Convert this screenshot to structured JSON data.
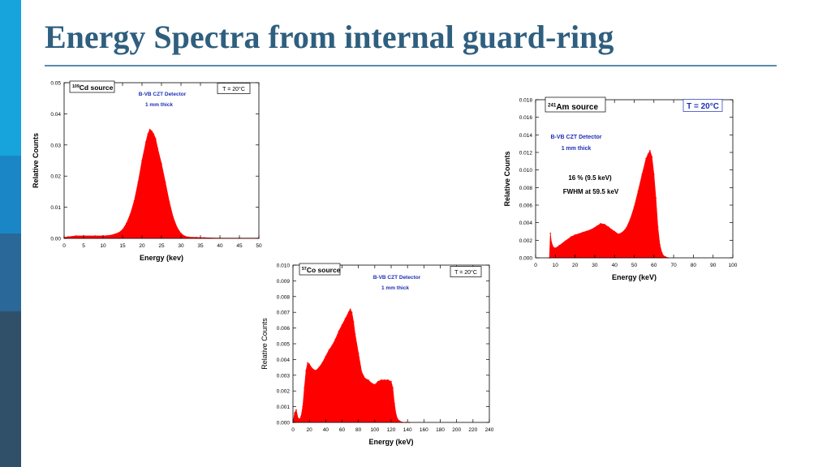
{
  "page": {
    "title": "Energy Spectra from internal guard-ring",
    "sidebar_colors": [
      "#17a3dc",
      "#1b86c6",
      "#2a6899",
      "#2f5068"
    ],
    "title_color": "#2f5f7f",
    "rule_color": "#5b8ba8"
  },
  "chart_data": [
    {
      "type": "area",
      "series_color": "#ff0000",
      "xlabel": "Energy (kev)",
      "ylabel": "Relative Counts",
      "xlim": [
        0,
        50
      ],
      "ylim": [
        0,
        0.05
      ],
      "xticks": [
        0,
        5,
        10,
        15,
        20,
        25,
        30,
        35,
        40,
        45,
        50
      ],
      "yticks": [
        0,
        0.01,
        0.02,
        0.03,
        0.04,
        0.05
      ],
      "ytick_labels": [
        "0.00",
        "0.01",
        "0.02",
        "0.03",
        "0.04",
        "0.05"
      ],
      "annotations": {
        "source_sup": "109",
        "source": "Cd source",
        "detector": "B-VB CZT Detector",
        "thickness": "1 mm thick",
        "temperature": "T = 20°C"
      },
      "x": [
        0,
        1,
        3,
        5,
        8,
        10,
        12,
        14,
        15,
        16,
        17,
        18,
        19,
        20,
        21,
        21.5,
        22,
        22.5,
        23,
        23.5,
        24,
        25,
        26,
        27,
        28,
        29,
        30,
        31,
        32,
        34,
        36,
        40,
        45,
        50
      ],
      "y": [
        0.0003,
        0.0005,
        0.0008,
        0.0008,
        0.0008,
        0.0008,
        0.001,
        0.0018,
        0.0028,
        0.0048,
        0.0078,
        0.012,
        0.018,
        0.025,
        0.031,
        0.0335,
        0.035,
        0.0345,
        0.0335,
        0.032,
        0.029,
        0.024,
        0.018,
        0.0118,
        0.0068,
        0.0035,
        0.0016,
        0.0007,
        0.0004,
        0.0003,
        0.0002,
        0.0001,
        0.0001,
        0.0001
      ]
    },
    {
      "type": "area",
      "series_color": "#ff0000",
      "xlabel": "Energy (keV)",
      "ylabel": "Relative Counts",
      "xlim": [
        0,
        100
      ],
      "ylim": [
        0,
        0.018
      ],
      "xticks": [
        0,
        10,
        20,
        30,
        40,
        50,
        60,
        70,
        80,
        90,
        100
      ],
      "yticks": [
        0,
        0.002,
        0.004,
        0.006,
        0.008,
        0.01,
        0.012,
        0.014,
        0.016,
        0.018
      ],
      "ytick_labels": [
        "0.000",
        "0.002",
        "0.004",
        "0.006",
        "0.008",
        "0.010",
        "0.012",
        "0.014",
        "0.016",
        "0.018"
      ],
      "annotations": {
        "source_sup": "241",
        "source": "Am source",
        "temperature": "T = 20°C",
        "detector": "B-VB CZT Detector",
        "thickness": "1 mm thick",
        "resolution": "16 % (9.5 keV)",
        "fwhm": "FWHM at 59.5 keV"
      },
      "x": [
        7,
        7.5,
        8,
        9,
        10,
        12,
        15,
        18,
        20,
        24,
        28,
        31,
        33,
        35,
        37,
        40,
        42,
        44,
        46,
        48,
        50,
        52,
        54,
        56,
        57,
        58,
        59,
        60,
        61,
        62,
        63,
        64,
        65,
        66,
        67
      ],
      "y": [
        0.0,
        0.0028,
        0.0018,
        0.0012,
        0.0011,
        0.0014,
        0.0019,
        0.0024,
        0.0026,
        0.0029,
        0.0032,
        0.0036,
        0.0039,
        0.0038,
        0.0035,
        0.003,
        0.0027,
        0.0029,
        0.0034,
        0.0044,
        0.0058,
        0.0076,
        0.0095,
        0.0113,
        0.0118,
        0.0122,
        0.0115,
        0.0095,
        0.0068,
        0.0035,
        0.0015,
        0.0006,
        0.0002,
        0.0001,
        0.0
      ]
    },
    {
      "type": "area",
      "series_color": "#ff0000",
      "xlabel": "Energy (keV)",
      "ylabel": "Relative Counts",
      "xlim": [
        0,
        240
      ],
      "ylim": [
        0,
        0.01
      ],
      "xticks": [
        0,
        20,
        40,
        60,
        80,
        100,
        120,
        140,
        160,
        180,
        200,
        220,
        240
      ],
      "yticks": [
        0,
        0.001,
        0.002,
        0.003,
        0.004,
        0.005,
        0.006,
        0.007,
        0.008,
        0.009,
        0.01
      ],
      "ytick_labels": [
        "0.000",
        "0.001",
        "0.002",
        "0.003",
        "0.004",
        "0.005",
        "0.006",
        "0.007",
        "0.008",
        "0.009",
        "0.010"
      ],
      "annotations": {
        "source_sup": "57",
        "source": "Co source",
        "detector": "B-VB CZT Detector",
        "thickness": "1 mm thick",
        "temperature": "T = 20°C"
      },
      "x": [
        0,
        2,
        4,
        6,
        8,
        10,
        12,
        14,
        16,
        18,
        20,
        24,
        28,
        32,
        36,
        40,
        44,
        48,
        52,
        56,
        60,
        64,
        68,
        70,
        72,
        74,
        76,
        80,
        84,
        88,
        92,
        96,
        100,
        104,
        108,
        112,
        116,
        120,
        122,
        124,
        126,
        128,
        130,
        134,
        138,
        142
      ],
      "y": [
        0.0,
        0.0006,
        0.0008,
        0.0003,
        0.0002,
        0.0004,
        0.001,
        0.0022,
        0.0033,
        0.0038,
        0.0037,
        0.0034,
        0.0033,
        0.0035,
        0.0038,
        0.0042,
        0.0046,
        0.0049,
        0.0053,
        0.0058,
        0.0062,
        0.0066,
        0.007,
        0.0072,
        0.007,
        0.0064,
        0.0056,
        0.0044,
        0.0032,
        0.0028,
        0.0027,
        0.0025,
        0.0024,
        0.0026,
        0.0027,
        0.0027,
        0.0027,
        0.0026,
        0.0022,
        0.0012,
        0.0005,
        0.0002,
        0.0001,
        0.0,
        0.0,
        0.0
      ]
    }
  ]
}
